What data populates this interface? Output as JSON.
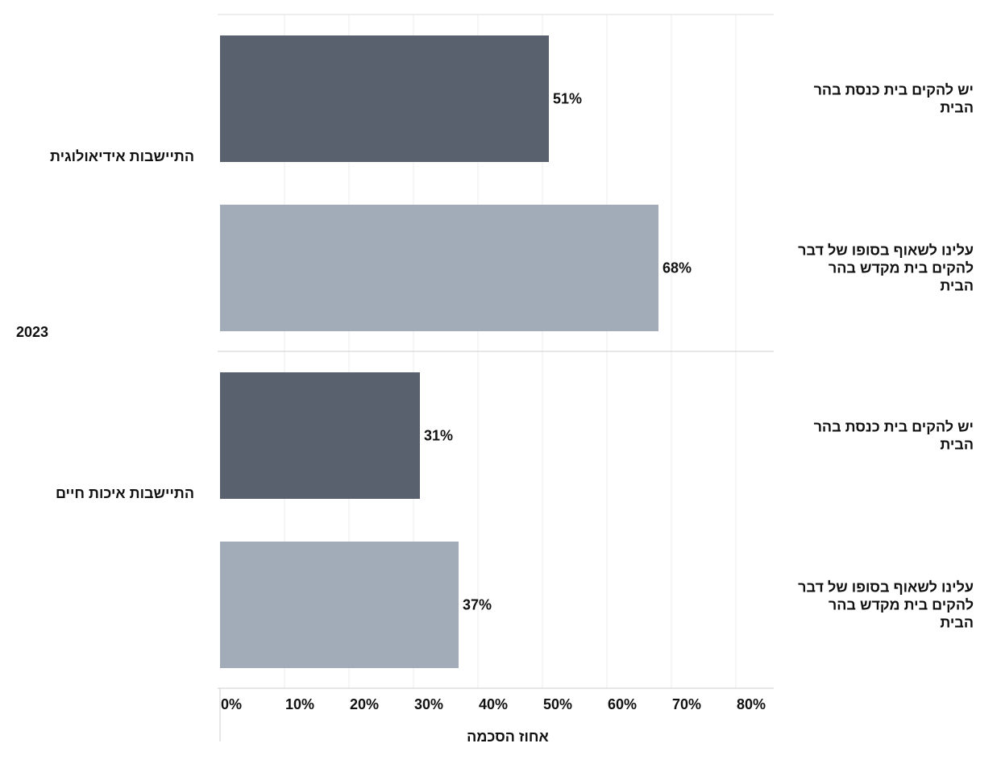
{
  "chart_data": {
    "type": "bar",
    "orientation": "horizontal",
    "year_label": "2023",
    "xlabel": "אחוז הסכמה",
    "x_ticks": [
      "0%",
      "10%",
      "20%",
      "30%",
      "40%",
      "50%",
      "60%",
      "70%",
      "80%"
    ],
    "xlim": [
      0,
      86
    ],
    "grid": true,
    "statements": [
      {
        "label": [
          "יש להקים בית כנסת בהר",
          "הבית"
        ],
        "color": "#5a616e"
      },
      {
        "label": [
          "עלינו לשאוף בסופו של דבר",
          "להקים בית מקדש בהר",
          "הבית"
        ],
        "color": "#a2acb8"
      }
    ],
    "groups": [
      {
        "name": "התיישבות אידיאולוגית",
        "values": [
          51,
          68
        ],
        "value_labels": [
          "51%",
          "68%"
        ]
      },
      {
        "name": "התיישבות איכות חיים",
        "values": [
          31,
          37
        ],
        "value_labels": [
          "31%",
          "37%"
        ]
      }
    ]
  }
}
